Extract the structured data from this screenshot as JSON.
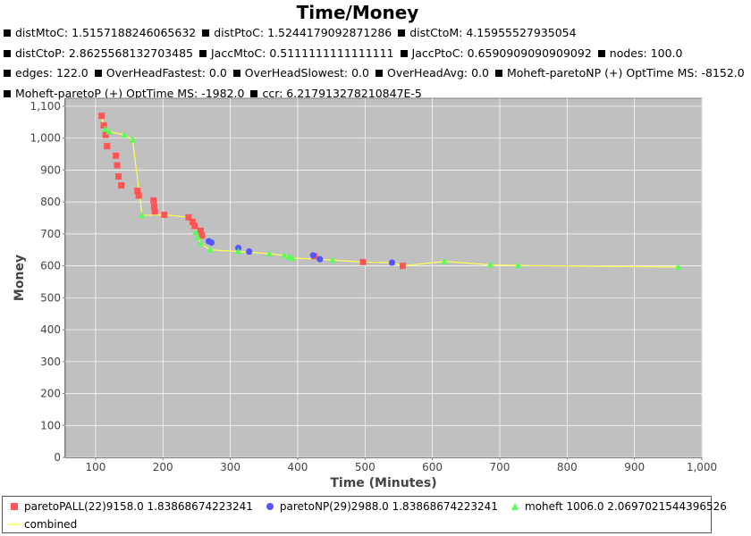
{
  "stats_lines": [
    [
      "distMtoC: 1.5157188246065632",
      "distPtoC: 1.5244179092871286",
      "distCtoM: 4.15955527935054"
    ],
    [
      "distCtoP: 2.8625568132703485",
      "JaccMtoC: 0.5111111111111111",
      "JaccPtoC: 0.6590909090909092",
      "nodes: 100.0"
    ],
    [
      "edges: 122.0",
      "OverHeadFastest: 0.0",
      "OverHeadSlowest: 0.0",
      "OverHeadAvg: 0.0",
      "Moheft-paretoNP (+) OptTime MS: -8152.0"
    ],
    [
      "Moheft-paretoP (+) OptTime MS: -1982.0",
      "ccr: 6.217913278210847E-5"
    ]
  ],
  "chart_data": {
    "type": "scatter",
    "title": "Time/Money",
    "xlabel": "Time (Minutes)",
    "ylabel": "Money",
    "xlim": [
      55,
      1000
    ],
    "ylim": [
      0,
      1125
    ],
    "xticks": [
      100,
      200,
      300,
      400,
      500,
      600,
      700,
      800,
      900,
      1000
    ],
    "xtick_labels": [
      "100",
      "200",
      "300",
      "400",
      "500",
      "600",
      "700",
      "800",
      "900",
      "1,000"
    ],
    "yticks": [
      0,
      100,
      200,
      300,
      400,
      500,
      600,
      700,
      800,
      900,
      1000,
      1100
    ],
    "ytick_labels": [
      "0",
      "100",
      "200",
      "300",
      "400",
      "500",
      "600",
      "700",
      "800",
      "900",
      "1,000",
      "1,100"
    ],
    "grid": true,
    "background": "#c0c0c0",
    "legend_position": "bottom",
    "series": [
      {
        "name": "paretoPALL(22)9158.0 1.83868674223241",
        "marker": "square",
        "color": "#ff5555",
        "points": [
          [
            109,
            1070
          ],
          [
            112,
            1040
          ],
          [
            115,
            1010
          ],
          [
            117,
            975
          ],
          [
            130,
            945
          ],
          [
            132,
            915
          ],
          [
            134,
            880
          ],
          [
            138,
            852
          ],
          [
            162,
            835
          ],
          [
            164,
            820
          ],
          [
            186,
            805
          ],
          [
            187,
            785
          ],
          [
            188,
            770
          ],
          [
            202,
            760
          ],
          [
            238,
            752
          ],
          [
            244,
            738
          ],
          [
            247,
            725
          ],
          [
            256,
            710
          ],
          [
            258,
            695
          ],
          [
            425,
            630
          ],
          [
            497,
            612
          ],
          [
            556,
            600
          ]
        ]
      },
      {
        "name": "paretoNP(29)2988.0 1.83868674223241",
        "marker": "circle",
        "color": "#5555ff",
        "points": [
          [
            268,
            677
          ],
          [
            272,
            673
          ],
          [
            312,
            656
          ],
          [
            328,
            645
          ],
          [
            423,
            633
          ],
          [
            433,
            621
          ],
          [
            540,
            610
          ]
        ]
      },
      {
        "name": "moheft 1006.0 2.0697021544396526",
        "marker": "triangle",
        "color": "#55ff55",
        "points": [
          [
            114,
            1028
          ],
          [
            120,
            1020
          ],
          [
            143,
            1010
          ],
          [
            155,
            995
          ],
          [
            169,
            758
          ],
          [
            249,
            705
          ],
          [
            252,
            690
          ],
          [
            256,
            670
          ],
          [
            270,
            650
          ],
          [
            312,
            645
          ],
          [
            358,
            638
          ],
          [
            380,
            633
          ],
          [
            387,
            628
          ],
          [
            392,
            624
          ],
          [
            452,
            618
          ],
          [
            618,
            614
          ],
          [
            686,
            603
          ],
          [
            727,
            601
          ],
          [
            965,
            596
          ]
        ]
      },
      {
        "name": "combined",
        "marker": "line",
        "color": "#ffff55",
        "points": [
          [
            109,
            1070
          ],
          [
            112,
            1040
          ],
          [
            114,
            1028
          ],
          [
            120,
            1020
          ],
          [
            143,
            1010
          ],
          [
            155,
            995
          ],
          [
            169,
            758
          ],
          [
            202,
            760
          ],
          [
            238,
            752
          ],
          [
            244,
            738
          ],
          [
            249,
            705
          ],
          [
            252,
            690
          ],
          [
            256,
            670
          ],
          [
            270,
            650
          ],
          [
            312,
            645
          ],
          [
            358,
            638
          ],
          [
            380,
            633
          ],
          [
            387,
            628
          ],
          [
            392,
            624
          ],
          [
            433,
            621
          ],
          [
            452,
            618
          ],
          [
            497,
            612
          ],
          [
            540,
            610
          ],
          [
            556,
            600
          ],
          [
            618,
            614
          ],
          [
            686,
            603
          ],
          [
            727,
            601
          ],
          [
            965,
            596
          ]
        ]
      }
    ]
  }
}
